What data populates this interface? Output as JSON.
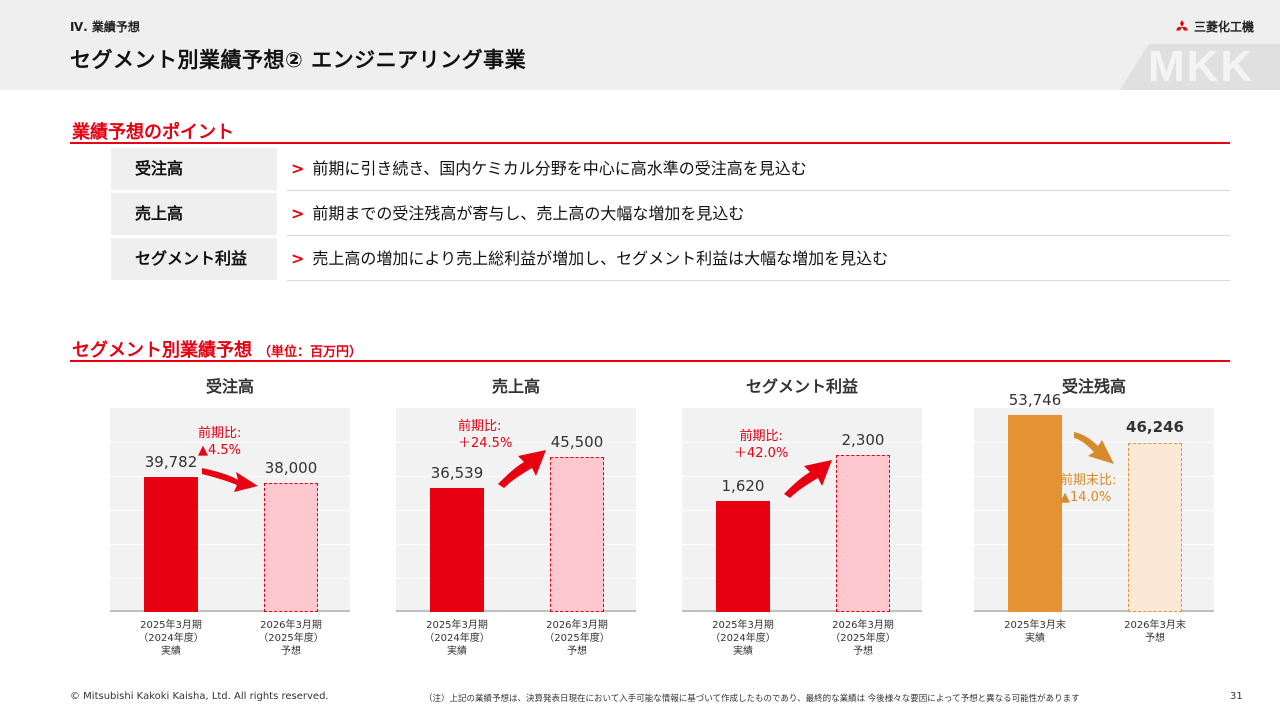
{
  "header": {
    "section_label": "Ⅳ. 業績予想",
    "title": "セグメント別業績予想② エンジニアリング事業",
    "logo_text": "三菱化工機",
    "watermark": "MKK"
  },
  "points": {
    "title": "業績予想のポイント",
    "rows": [
      {
        "label": "受注高",
        "text": "前期に引き続き、国内ケミカル分野を中心に高水準の受注高を見込む"
      },
      {
        "label": "売上高",
        "text": "前期までの受注残高が寄与し、売上高の大幅な増加を見込む"
      },
      {
        "label": "セグメント利益",
        "text": "売上高の増加により売上総利益が増加し、セグメント利益は大幅な増加を見込む"
      }
    ],
    "bullet": ">"
  },
  "forecast": {
    "title": "セグメント別業績予想",
    "unit": "（単位：百万円）"
  },
  "chart_data": [
    {
      "type": "bar",
      "title": "受注高",
      "categories": [
        "2025年3月期\n（2024年度）\n実績",
        "2026年3月期\n（2025年度）\n予想"
      ],
      "values": [
        39782,
        38000
      ],
      "value_labels": [
        "39,782",
        "38,000"
      ],
      "change_label": [
        "前期比:",
        "▲4.5%"
      ],
      "colors": [
        "#e60012",
        "#ffc7ce"
      ]
    },
    {
      "type": "bar",
      "title": "売上高",
      "categories": [
        "2025年3月期\n（2024年度）\n実績",
        "2026年3月期\n（2025年度）\n予想"
      ],
      "values": [
        36539,
        45500
      ],
      "value_labels": [
        "36,539",
        "45,500"
      ],
      "change_label": [
        "前期比:",
        "＋24.5%"
      ],
      "colors": [
        "#e60012",
        "#ffc7ce"
      ]
    },
    {
      "type": "bar",
      "title": "セグメント利益",
      "categories": [
        "2025年3月期\n（2024年度）\n実績",
        "2026年3月期\n（2025年度）\n予想"
      ],
      "values": [
        1620,
        2300
      ],
      "value_labels": [
        "1,620",
        "2,300"
      ],
      "change_label": [
        "前期比:",
        "＋42.0%"
      ],
      "colors": [
        "#e60012",
        "#ffc7ce"
      ]
    },
    {
      "type": "bar",
      "title": "受注残高",
      "categories": [
        "2025年3月末\n実績",
        "2026年3月末\n予想"
      ],
      "values": [
        53746,
        46246
      ],
      "value_labels": [
        "53,746",
        "46,246"
      ],
      "change_label": [
        "前期末比:",
        "▲14.0%"
      ],
      "colors": [
        "#e59235",
        "#fbe9d5"
      ]
    }
  ],
  "footer": {
    "copyright": "© Mitsubishi Kakoki Kaisha, Ltd. All rights reserved.",
    "note": "（注）上記の業績予想は、決算発表日現在において入手可能な情報に基づいて作成したものであり、最終的な業績は 今後様々な要因によって予想と異なる可能性があります",
    "page_number": "31"
  }
}
